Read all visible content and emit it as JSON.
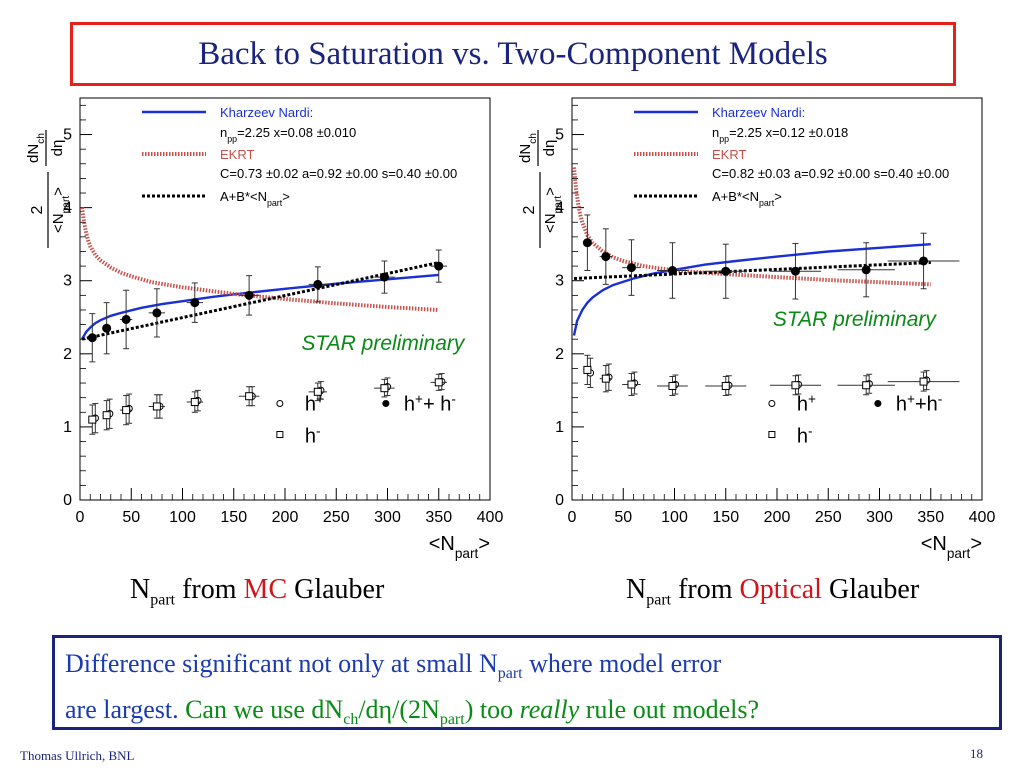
{
  "slide": {
    "title": "Back to Saturation vs. Two-Component Models",
    "footer_left": "Thomas Ullrich, BNL",
    "page_number": "18"
  },
  "captions": {
    "left": {
      "n": "N",
      "sub": "part",
      "from": " from ",
      "hl": "MC",
      "rest": " Glauber"
    },
    "right": {
      "n": "N",
      "sub": "part",
      "from": " from ",
      "hl": "Optical",
      "rest": " Glauber"
    }
  },
  "note": {
    "l1a": "Difference significant not only at small N",
    "l1sub": "part",
    "l1b": "  where model error",
    "l2a": "are largest.  ",
    "l2g1": "Can we use dN",
    "l2gs1": "ch",
    "l2g2": "/dη/(2N",
    "l2gs2": "part",
    "l2g3": ") too ",
    "l2gi": "really",
    "l2g4": " rule out models?"
  },
  "colors": {
    "kn": "#1a2fd6",
    "ekrt": "#c8504a",
    "fit": "#000000",
    "title_border": "#e8201c",
    "accent_red": "#d0161a",
    "note_green": "#0a8a16"
  },
  "chart_data": [
    {
      "type": "scatter",
      "panel": "left",
      "xlim": [
        0,
        400
      ],
      "ylim": [
        0,
        5.5
      ],
      "xticks": [
        0,
        50,
        100,
        150,
        200,
        250,
        300,
        350,
        400
      ],
      "yticks": [
        0,
        1,
        2,
        3,
        4,
        5
      ],
      "xlabel": {
        "pre": "<N",
        "sub": "part",
        "post": ">"
      },
      "ylabel": {
        "num": "2",
        "den_pre": "<N",
        "den_sub": "part",
        "den_post": ">",
        "rnum_pre": "dN",
        "rnum_sub": "ch",
        "rden": "dη"
      },
      "annotation": "STAR preliminary",
      "legend_box": {
        "kn_label": "Kharzeev Nardi:",
        "kn_params": {
          "pre": "n",
          "sub": "pp",
          "post": "=2.25 x=0.08 ±0.010"
        },
        "ekrt_label": "EKRT",
        "ekrt_params": "C=0.73 ±0.02 a=0.92 ±0.00 s=0.40 ±0.00",
        "fit_label": {
          "pre": "A+B*<N",
          "sub": "part",
          "post": ">"
        }
      },
      "legend_markers": {
        "hplus": {
          "base": "h",
          "sup": "+"
        },
        "hminus": {
          "base": "h",
          "sup": "-"
        },
        "hsum": {
          "a": "h",
          "as": "+",
          "mid": "+ h",
          "bs": "-"
        }
      },
      "series": [
        {
          "name": "h⁺ + h⁻",
          "marker": "filled-circle",
          "x": [
            12,
            26,
            45,
            75,
            112,
            165,
            232,
            297,
            350
          ],
          "y": [
            2.22,
            2.35,
            2.47,
            2.56,
            2.7,
            2.8,
            2.95,
            3.05,
            3.2
          ],
          "yerr": [
            0.33,
            0.35,
            0.4,
            0.33,
            0.27,
            0.27,
            0.24,
            0.22,
            0.22
          ],
          "xerr": [
            3,
            4,
            6,
            8,
            8,
            10,
            9,
            10,
            8
          ]
        },
        {
          "name": "h⁺",
          "marker": "open-circle",
          "x": [
            12,
            26,
            45,
            75,
            112,
            165,
            232,
            297,
            350
          ],
          "y": [
            1.12,
            1.18,
            1.25,
            1.28,
            1.36,
            1.42,
            1.5,
            1.55,
            1.62
          ],
          "yerr": [
            0.2,
            0.2,
            0.2,
            0.16,
            0.14,
            0.13,
            0.12,
            0.12,
            0.11
          ]
        },
        {
          "name": "h⁻",
          "marker": "open-square",
          "x": [
            12,
            26,
            45,
            75,
            112,
            165,
            232,
            297,
            350
          ],
          "y": [
            1.1,
            1.16,
            1.23,
            1.28,
            1.34,
            1.42,
            1.48,
            1.53,
            1.61
          ],
          "yerr": [
            0.2,
            0.2,
            0.2,
            0.16,
            0.14,
            0.13,
            0.12,
            0.12,
            0.11
          ],
          "xerr": [
            3,
            4,
            6,
            8,
            8,
            10,
            9,
            10,
            8
          ]
        }
      ],
      "curves": [
        {
          "name": "Kharzeev Nardi",
          "style": "solid-blue",
          "x": [
            2,
            6,
            10,
            15,
            20,
            30,
            40,
            60,
            80,
            100,
            130,
            160,
            200,
            250,
            300,
            350
          ],
          "y": [
            2.2,
            2.3,
            2.36,
            2.42,
            2.46,
            2.52,
            2.56,
            2.63,
            2.68,
            2.72,
            2.78,
            2.83,
            2.89,
            2.96,
            3.02,
            3.08
          ]
        },
        {
          "name": "EKRT",
          "style": "dotted-red",
          "x": [
            2,
            4,
            6,
            8,
            10,
            15,
            20,
            30,
            40,
            50,
            70,
            100,
            150,
            200,
            250,
            300,
            350
          ],
          "y": [
            4.0,
            3.8,
            3.65,
            3.55,
            3.47,
            3.35,
            3.28,
            3.18,
            3.11,
            3.06,
            2.98,
            2.91,
            2.82,
            2.75,
            2.69,
            2.64,
            2.6
          ]
        },
        {
          "name": "A+B*<Npart>",
          "style": "dotted-black",
          "x": [
            2,
            350
          ],
          "y": [
            2.2,
            3.25
          ]
        }
      ]
    },
    {
      "type": "scatter",
      "panel": "right",
      "xlim": [
        0,
        400
      ],
      "ylim": [
        0,
        5.5
      ],
      "xticks": [
        0,
        50,
        100,
        150,
        200,
        250,
        300,
        350,
        400
      ],
      "yticks": [
        0,
        1,
        2,
        3,
        4,
        5
      ],
      "xlabel": {
        "pre": "<N",
        "sub": "part",
        "post": ">"
      },
      "ylabel": {
        "num": "2",
        "den_pre": "<N",
        "den_sub": "part",
        "den_post": ">",
        "rnum_pre": "dN",
        "rnum_sub": "ch",
        "rden": "dη"
      },
      "annotation": "STAR preliminary",
      "legend_box": {
        "kn_label": "Kharzeev Nardi:",
        "kn_params": {
          "pre": "n",
          "sub": "pp",
          "post": "=2.25 x=0.12 ±0.018"
        },
        "ekrt_label": "EKRT",
        "ekrt_params": "C=0.82 ±0.03 a=0.92 ±0.00 s=0.40 ±0.00",
        "fit_label": {
          "pre": "A+B*<N",
          "sub": "part",
          "post": ">"
        }
      },
      "legend_markers": {
        "hplus": {
          "base": "h",
          "sup": "+"
        },
        "hminus": {
          "base": "h",
          "sup": "-"
        },
        "hsum": {
          "a": "h",
          "as": "+",
          "mid": "+h",
          "bs": "-"
        }
      },
      "series": [
        {
          "name": "h⁺ + h⁻",
          "marker": "filled-circle",
          "x": [
            15,
            33,
            58,
            98,
            150,
            218,
            287,
            343
          ],
          "y": [
            3.52,
            3.33,
            3.18,
            3.14,
            3.13,
            3.13,
            3.15,
            3.27
          ],
          "yerr": [
            0.38,
            0.38,
            0.38,
            0.38,
            0.37,
            0.38,
            0.37,
            0.38
          ],
          "xerr": [
            4,
            6,
            9,
            15,
            20,
            25,
            28,
            35
          ]
        },
        {
          "name": "h⁺",
          "marker": "open-circle",
          "x": [
            15,
            33,
            58,
            98,
            150,
            218,
            287,
            343
          ],
          "y": [
            1.74,
            1.68,
            1.6,
            1.58,
            1.57,
            1.58,
            1.59,
            1.64
          ],
          "yerr": [
            0.2,
            0.18,
            0.15,
            0.13,
            0.13,
            0.13,
            0.13,
            0.13
          ]
        },
        {
          "name": "h⁻",
          "marker": "open-square",
          "x": [
            15,
            33,
            58,
            98,
            150,
            218,
            287,
            343
          ],
          "y": [
            1.78,
            1.66,
            1.58,
            1.56,
            1.56,
            1.57,
            1.57,
            1.62
          ],
          "yerr": [
            0.2,
            0.18,
            0.15,
            0.13,
            0.13,
            0.13,
            0.13,
            0.13
          ],
          "xerr": [
            4,
            6,
            9,
            15,
            20,
            25,
            28,
            35
          ]
        }
      ],
      "curves": [
        {
          "name": "Kharzeev Nardi",
          "style": "solid-blue",
          "x": [
            2,
            5,
            10,
            15,
            20,
            30,
            40,
            60,
            80,
            100,
            130,
            160,
            200,
            250,
            300,
            350
          ],
          "y": [
            2.25,
            2.45,
            2.6,
            2.7,
            2.77,
            2.87,
            2.94,
            3.03,
            3.1,
            3.15,
            3.22,
            3.27,
            3.33,
            3.4,
            3.45,
            3.5
          ]
        },
        {
          "name": "EKRT",
          "style": "dotted-red",
          "x": [
            2,
            4,
            6,
            8,
            10,
            15,
            20,
            30,
            40,
            50,
            70,
            100,
            150,
            200,
            250,
            300,
            350
          ],
          "y": [
            4.55,
            4.25,
            4.05,
            3.9,
            3.8,
            3.62,
            3.52,
            3.4,
            3.32,
            3.27,
            3.2,
            3.14,
            3.09,
            3.05,
            3.01,
            2.98,
            2.95
          ]
        },
        {
          "name": "A+B*<Npart>",
          "style": "dotted-black",
          "x": [
            2,
            350
          ],
          "y": [
            3.03,
            3.25
          ]
        }
      ]
    }
  ]
}
